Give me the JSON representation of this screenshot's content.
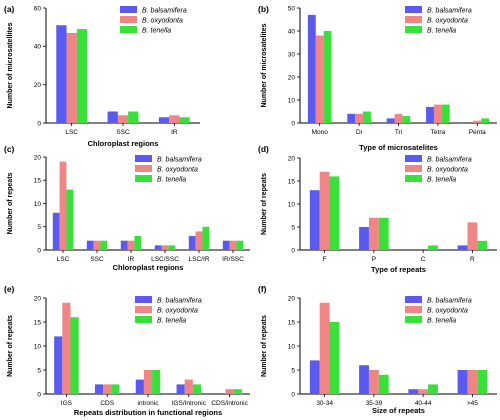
{
  "colors": {
    "B. balsamifera": "#5a5aee",
    "B. oxyodonta": "#f08585",
    "B. tenella": "#3ae03a"
  },
  "chart_data": [
    {
      "panel": "(a)",
      "type": "bar",
      "categories": [
        "LSC",
        "SSC",
        "IR"
      ],
      "series": [
        {
          "name": "B. balsamifera",
          "values": [
            51,
            6,
            3
          ]
        },
        {
          "name": "B. oxyodonta",
          "values": [
            47,
            4,
            4
          ]
        },
        {
          "name": "B. tenella",
          "values": [
            49,
            6,
            3
          ]
        }
      ],
      "xlabel": "Chloroplast regions",
      "ylabel": "Number of microsatellites",
      "ylim": [
        0,
        60
      ],
      "yticks": [
        0,
        20,
        40,
        60
      ],
      "legend": "top-right",
      "grid": false
    },
    {
      "panel": "(b)",
      "type": "bar",
      "categories": [
        "Mono",
        "Di",
        "Tri",
        "Tetra",
        "Penta"
      ],
      "series": [
        {
          "name": "B. balsamifera",
          "values": [
            47,
            4,
            2,
            7,
            0
          ]
        },
        {
          "name": "B. oxyodonta",
          "values": [
            38,
            4,
            4,
            8,
            1
          ]
        },
        {
          "name": "B. tenella",
          "values": [
            40,
            5,
            3,
            8,
            2
          ]
        }
      ],
      "xlabel": "Type of microsatelites",
      "ylabel": "Number of microsatelites",
      "ylim": [
        0,
        50
      ],
      "yticks": [
        0,
        10,
        20,
        30,
        40,
        50
      ],
      "legend": "top-right",
      "grid": false
    },
    {
      "panel": "(c)",
      "type": "bar",
      "categories": [
        "LSC",
        "SSC",
        "IR",
        "LSC/SSC",
        "LSC/IR",
        "IR/SSC"
      ],
      "series": [
        {
          "name": "B. balsamifera",
          "values": [
            8,
            2,
            2,
            1,
            3,
            2
          ]
        },
        {
          "name": "B. oxyodonta",
          "values": [
            19,
            2,
            2,
            1,
            4,
            2
          ]
        },
        {
          "name": "B. tenella",
          "values": [
            13,
            2,
            3,
            1,
            5,
            2
          ]
        }
      ],
      "xlabel": "Chloroplast regions",
      "ylabel": "Number of repeats",
      "ylim": [
        0,
        20
      ],
      "yticks": [
        0,
        5,
        10,
        15,
        20
      ],
      "legend": "top-right",
      "grid": false
    },
    {
      "panel": "(d)",
      "type": "bar",
      "categories": [
        "F",
        "P",
        "C",
        "R"
      ],
      "series": [
        {
          "name": "B. balsamifera",
          "values": [
            13,
            5,
            0,
            1
          ]
        },
        {
          "name": "B. oxyodonta",
          "values": [
            17,
            7,
            0,
            6
          ]
        },
        {
          "name": "B. tenella",
          "values": [
            16,
            7,
            1,
            2
          ]
        }
      ],
      "xlabel": "Type of repeats",
      "ylabel": "Number of repeats",
      "ylim": [
        0,
        20
      ],
      "yticks": [
        0,
        5,
        10,
        15,
        20
      ],
      "legend": "top-right",
      "grid": false
    },
    {
      "panel": "(e)",
      "type": "bar",
      "categories": [
        "IGS",
        "CDS",
        "intronic",
        "IGS/Intronic",
        "CDS/intronic"
      ],
      "series": [
        {
          "name": "B. balsamifera",
          "values": [
            12,
            2,
            3,
            2,
            0
          ]
        },
        {
          "name": "B. oxyodonta",
          "values": [
            19,
            2,
            5,
            3,
            1
          ]
        },
        {
          "name": "B. tenella",
          "values": [
            16,
            2,
            5,
            2,
            1
          ]
        }
      ],
      "xlabel": "Repeats distribution in functional regions",
      "ylabel": "Number of repeats",
      "ylim": [
        0,
        20
      ],
      "yticks": [
        0,
        5,
        10,
        15,
        20
      ],
      "legend": "top-right",
      "grid": false
    },
    {
      "panel": "(f)",
      "type": "bar",
      "categories": [
        "30-34",
        "35-39",
        "40-44",
        ">45"
      ],
      "series": [
        {
          "name": "B. balsamifera",
          "values": [
            7,
            6,
            1,
            5
          ]
        },
        {
          "name": "B. oxyodonta",
          "values": [
            19,
            5,
            1,
            5
          ]
        },
        {
          "name": "B. tenella",
          "values": [
            15,
            4,
            2,
            5
          ]
        }
      ],
      "xlabel": "Size of repeats",
      "ylabel": "Number of repeats",
      "ylim": [
        0,
        20
      ],
      "yticks": [
        0,
        5,
        10,
        15,
        20
      ],
      "legend": "top-right",
      "grid": false
    }
  ]
}
